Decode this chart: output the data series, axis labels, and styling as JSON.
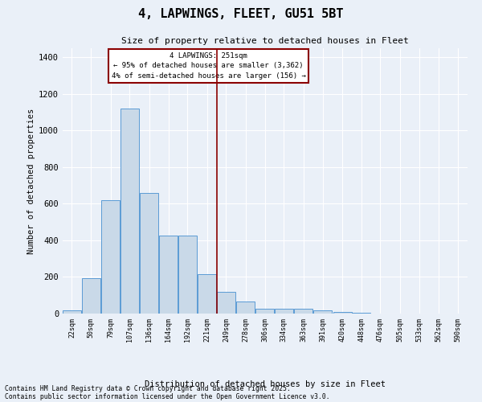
{
  "title": "4, LAPWINGS, FLEET, GU51 5BT",
  "subtitle": "Size of property relative to detached houses in Fleet",
  "xlabel": "Distribution of detached houses by size in Fleet",
  "ylabel": "Number of detached properties",
  "footnote1": "Contains HM Land Registry data © Crown copyright and database right 2025.",
  "footnote2": "Contains public sector information licensed under the Open Government Licence v3.0.",
  "annotation_line1": "4 LAPWINGS: 251sqm",
  "annotation_line2": "← 95% of detached houses are smaller (3,362)",
  "annotation_line3": "4% of semi-detached houses are larger (156) →",
  "property_size": 251,
  "bar_color": "#c9d9e8",
  "bar_edge_color": "#5b9bd5",
  "vline_color": "#8b0000",
  "background_color": "#eaf0f8",
  "annotation_box_color": "#8b0000",
  "categories": [
    "22sqm",
    "50sqm",
    "79sqm",
    "107sqm",
    "136sqm",
    "164sqm",
    "192sqm",
    "221sqm",
    "249sqm",
    "278sqm",
    "306sqm",
    "334sqm",
    "363sqm",
    "391sqm",
    "420sqm",
    "448sqm",
    "476sqm",
    "505sqm",
    "533sqm",
    "562sqm",
    "590sqm"
  ],
  "bin_edges": [
    22,
    50,
    79,
    107,
    136,
    164,
    192,
    221,
    249,
    278,
    306,
    334,
    363,
    391,
    420,
    448,
    476,
    505,
    533,
    562,
    590
  ],
  "values": [
    18,
    195,
    620,
    1120,
    660,
    425,
    425,
    215,
    120,
    65,
    25,
    25,
    25,
    18,
    10,
    5,
    2,
    2,
    0,
    0,
    0
  ],
  "ylim": [
    0,
    1450
  ],
  "yticks": [
    0,
    200,
    400,
    600,
    800,
    1000,
    1200,
    1400
  ]
}
